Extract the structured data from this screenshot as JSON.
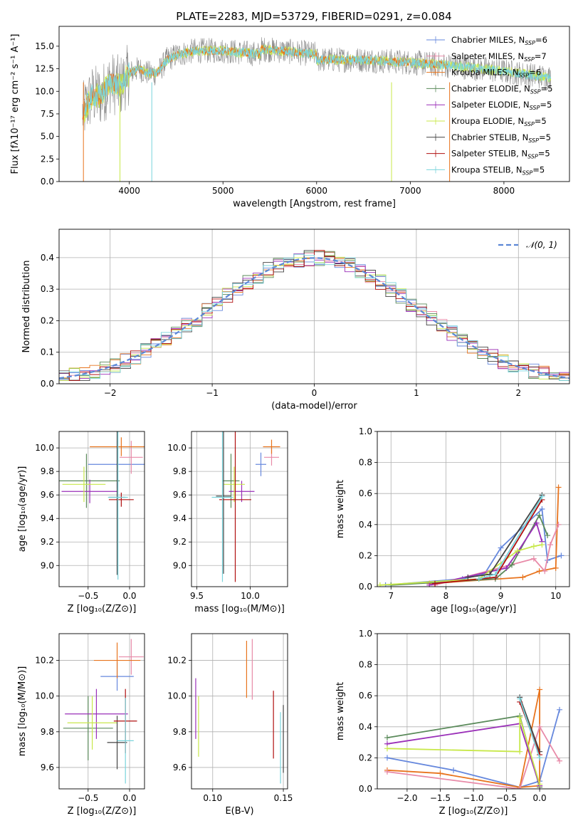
{
  "figure": {
    "title": "PLATE=2283, MJD=53729, FIBERID=0291, z=0.084"
  },
  "colors": {
    "blue": "#6688dd",
    "orange": "#e8741e",
    "pink": "#e88aa8",
    "green": "#5a8a5a",
    "purple": "#9a2fb8",
    "lime": "#c8e84a",
    "dark": "#444444",
    "red": "#b01010",
    "cyan": "#7ad4dc",
    "gray": "#888888"
  },
  "chart_data": [
    {
      "id": "spectrum",
      "type": "line",
      "title": "PLATE=2283, MJD=53729, FIBERID=0291, z=0.084",
      "xlabel": "wavelength [Angstrom, rest frame]",
      "ylabel": "Flux [fλ10⁻¹⁷ erg cm⁻² s⁻¹ A⁻¹]",
      "xlim": [
        3250,
        8700
      ],
      "ylim": [
        0,
        17.2
      ],
      "xticks": [
        4000,
        5000,
        6000,
        7000,
        8000
      ],
      "yticks": [
        0.0,
        2.5,
        5.0,
        7.5,
        10.0,
        12.5,
        15.0
      ],
      "data_profile": {
        "wavelength": [
          3500,
          3600,
          3700,
          3800,
          3900,
          4000,
          4100,
          4200,
          4300,
          4400,
          4500,
          4700,
          5000,
          5500,
          6000,
          6500,
          7000,
          7500,
          8000,
          8500
        ],
        "flux": [
          7.5,
          9.5,
          9.5,
          11.0,
          10.5,
          12.0,
          12.5,
          12.0,
          12.0,
          13.5,
          14.0,
          14.5,
          14.5,
          14.0,
          13.5,
          13.5,
          13.2,
          12.8,
          12.2,
          11.5
        ]
      },
      "legend": [
        {
          "label": "Chabrier MILES, N",
          "sub": "SSP",
          "suffix": "=6",
          "color": "blue"
        },
        {
          "label": "Salpeter MILES, N",
          "sub": "SSP",
          "suffix": "=7",
          "color": "pink"
        },
        {
          "label": "Kroupa MILES, N",
          "sub": "SSP",
          "suffix": "=6",
          "color": "orange"
        },
        {
          "label": "Chabrier ELODIE, N",
          "sub": "SSP",
          "suffix": "=5",
          "color": "green"
        },
        {
          "label": "Salpeter ELODIE, N",
          "sub": "SSP",
          "suffix": "=5",
          "color": "purple"
        },
        {
          "label": "Kroupa ELODIE, N",
          "sub": "SSP",
          "suffix": "=5",
          "color": "lime"
        },
        {
          "label": "Chabrier STELIB, N",
          "sub": "SSP",
          "suffix": "=5",
          "color": "dark"
        },
        {
          "label": "Salpeter STELIB, N",
          "sub": "SSP",
          "suffix": "=5",
          "color": "red"
        },
        {
          "label": "Kroupa STELIB, N",
          "sub": "SSP",
          "suffix": "=5",
          "color": "cyan"
        }
      ],
      "legend_position": "top-right"
    },
    {
      "id": "residuals",
      "type": "histogram",
      "xlabel": "(data-model)/error",
      "ylabel": "Normed distribution",
      "xlim": [
        -2.5,
        2.5
      ],
      "ylim": [
        0,
        0.49
      ],
      "xticks": [
        -2,
        -1,
        0,
        1,
        2
      ],
      "yticks": [
        0.0,
        0.1,
        0.2,
        0.3,
        0.4
      ],
      "bin_width": 0.1,
      "normal_label": "𝒩(0, 1)",
      "normal_color": "#5b87d6",
      "legend_position": "top-right",
      "grid": true
    },
    {
      "id": "age_vs_Z",
      "type": "errorbar",
      "xlabel": "Z [log₁₀(Z/Z⊙)]",
      "ylabel": "age  [log₁₀(age/yr)]",
      "xlim": [
        -0.85,
        0.18
      ],
      "ylim": [
        8.82,
        10.14
      ],
      "xticks": [
        -0.5,
        0.0
      ],
      "yticks": [
        9.0,
        9.2,
        9.4,
        9.6,
        9.8,
        10.0
      ],
      "points": [
        {
          "x": -0.15,
          "y": 9.86,
          "xerr": 0.35,
          "yerr": 0.2,
          "color": "blue"
        },
        {
          "x": 0.02,
          "y": 9.92,
          "xerr": 0.14,
          "yerr": 0.14,
          "color": "pink"
        },
        {
          "x": -0.1,
          "y": 10.01,
          "xerr": 0.38,
          "yerr": 0.08,
          "color": "orange"
        },
        {
          "x": -0.52,
          "y": 9.72,
          "xerr": 0.4,
          "yerr": 0.23,
          "color": "green"
        },
        {
          "x": -0.48,
          "y": 9.63,
          "xerr": 0.34,
          "yerr": 0.1,
          "color": "purple"
        },
        {
          "x": -0.55,
          "y": 9.69,
          "xerr": 0.26,
          "yerr": 0.15,
          "color": "lime"
        },
        {
          "x": -0.15,
          "y": 9.58,
          "xerr": 0.1,
          "yerr": 0.66,
          "color": "dark"
        },
        {
          "x": -0.1,
          "y": 9.56,
          "xerr": 0.15,
          "yerr": 0.06,
          "color": "red"
        },
        {
          "x": -0.14,
          "y": 9.58,
          "xerr": 0.12,
          "yerr": 0.7,
          "color": "cyan"
        }
      ],
      "grid": true
    },
    {
      "id": "age_vs_mass",
      "type": "errorbar",
      "xlabel": "mass [log₁₀(M/M⊙)]",
      "ylabel": "",
      "xlim": [
        9.45,
        10.35
      ],
      "ylim": [
        8.82,
        10.14
      ],
      "xticks": [
        9.5,
        10.0
      ],
      "yticks": [
        9.0,
        9.2,
        9.4,
        9.6,
        9.8,
        10.0
      ],
      "points": [
        {
          "x": 10.1,
          "y": 9.86,
          "xerr": 0.05,
          "yerr": 0.1,
          "color": "blue"
        },
        {
          "x": 10.2,
          "y": 9.92,
          "xerr": 0.07,
          "yerr": 0.07,
          "color": "pink"
        },
        {
          "x": 10.2,
          "y": 10.01,
          "xerr": 0.08,
          "yerr": 0.06,
          "color": "orange"
        },
        {
          "x": 9.82,
          "y": 9.72,
          "xerr": 0.08,
          "yerr": 0.23,
          "color": "green"
        },
        {
          "x": 9.92,
          "y": 9.63,
          "xerr": 0.12,
          "yerr": 0.09,
          "color": "purple"
        },
        {
          "x": 9.85,
          "y": 9.69,
          "xerr": 0.1,
          "yerr": 0.15,
          "color": "lime"
        },
        {
          "x": 9.75,
          "y": 9.59,
          "xerr": 0.07,
          "yerr": 0.66,
          "color": "dark"
        },
        {
          "x": 9.86,
          "y": 9.56,
          "xerr": 0.15,
          "yerr": 0.7,
          "color": "red"
        },
        {
          "x": 9.74,
          "y": 9.58,
          "xerr": 0.1,
          "yerr": 0.72,
          "color": "cyan"
        }
      ],
      "grid": true
    },
    {
      "id": "mass_weight_vs_age",
      "type": "line",
      "xlabel": "age  [log₁₀(age/yr)]",
      "ylabel": "mass weight",
      "xlim": [
        6.75,
        10.25
      ],
      "ylim": [
        0.0,
        1.0
      ],
      "xticks": [
        7,
        8,
        9,
        10
      ],
      "yticks": [
        0.0,
        0.2,
        0.4,
        0.6,
        0.8,
        1.0
      ],
      "series": [
        {
          "color": "blue",
          "points": [
            [
              6.9,
              0.01
            ],
            [
              8.3,
              0.05
            ],
            [
              8.7,
              0.08
            ],
            [
              9.0,
              0.25
            ],
            [
              9.75,
              0.5
            ],
            [
              9.85,
              0.17
            ],
            [
              10.1,
              0.2
            ]
          ]
        },
        {
          "color": "orange",
          "points": [
            [
              7.7,
              0.02
            ],
            [
              9.4,
              0.06
            ],
            [
              9.7,
              0.1
            ],
            [
              10.0,
              0.12
            ],
            [
              10.05,
              0.64
            ]
          ]
        },
        {
          "color": "pink",
          "points": [
            [
              7.8,
              0.01
            ],
            [
              9.6,
              0.18
            ],
            [
              9.8,
              0.1
            ],
            [
              9.9,
              0.27
            ],
            [
              10.05,
              0.4
            ]
          ]
        },
        {
          "color": "green",
          "points": [
            [
              7.0,
              0.01
            ],
            [
              8.9,
              0.05
            ],
            [
              9.2,
              0.14
            ],
            [
              9.7,
              0.46
            ],
            [
              9.85,
              0.33
            ]
          ]
        },
        {
          "color": "purple",
          "points": [
            [
              7.7,
              0.01
            ],
            [
              9.1,
              0.12
            ],
            [
              9.3,
              0.22
            ],
            [
              9.65,
              0.41
            ],
            [
              9.75,
              0.29
            ]
          ]
        },
        {
          "color": "lime",
          "points": [
            [
              6.8,
              0.01
            ],
            [
              8.6,
              0.05
            ],
            [
              9.3,
              0.23
            ],
            [
              9.6,
              0.26
            ],
            [
              9.75,
              0.27
            ]
          ]
        },
        {
          "color": "dark",
          "points": [
            [
              8.4,
              0.06
            ],
            [
              8.8,
              0.08
            ],
            [
              9.75,
              0.59
            ]
          ]
        },
        {
          "color": "red",
          "points": [
            [
              7.8,
              0.02
            ],
            [
              8.9,
              0.06
            ],
            [
              9.75,
              0.56
            ]
          ]
        },
        {
          "color": "cyan",
          "points": [
            [
              8.6,
              0.05
            ],
            [
              8.9,
              0.08
            ],
            [
              9.75,
              0.58
            ]
          ]
        }
      ],
      "grid": true
    },
    {
      "id": "mass_vs_Z",
      "type": "errorbar",
      "xlabel": "Z [log₁₀(Z/Z⊙)]",
      "ylabel": "mass [log₁₀(M/M⊙)]",
      "xlim": [
        -0.85,
        0.18
      ],
      "ylim": [
        9.48,
        10.35
      ],
      "xticks": [
        -0.5,
        0.0
      ],
      "yticks": [
        9.6,
        9.8,
        10.0,
        10.2
      ],
      "points": [
        {
          "x": -0.15,
          "y": 10.11,
          "xerr": 0.2,
          "yerr": 0.08,
          "color": "blue"
        },
        {
          "x": 0.02,
          "y": 10.22,
          "xerr": 0.15,
          "yerr": 0.1,
          "color": "pink"
        },
        {
          "x": -0.15,
          "y": 10.2,
          "xerr": 0.28,
          "yerr": 0.1,
          "color": "orange"
        },
        {
          "x": -0.5,
          "y": 9.82,
          "xerr": 0.3,
          "yerr": 0.18,
          "color": "green"
        },
        {
          "x": -0.4,
          "y": 9.9,
          "xerr": 0.38,
          "yerr": 0.14,
          "color": "purple"
        },
        {
          "x": -0.45,
          "y": 9.85,
          "xerr": 0.3,
          "yerr": 0.15,
          "color": "lime"
        },
        {
          "x": -0.15,
          "y": 9.74,
          "xerr": 0.12,
          "yerr": 0.15,
          "color": "dark"
        },
        {
          "x": -0.05,
          "y": 9.86,
          "xerr": 0.14,
          "yerr": 0.18,
          "color": "red"
        },
        {
          "x": -0.05,
          "y": 9.75,
          "xerr": 0.1,
          "yerr": 0.24,
          "color": "cyan"
        }
      ],
      "grid": true
    },
    {
      "id": "mass_vs_EBV",
      "type": "errorbar",
      "xlabel": "E(B-V)",
      "ylabel": "",
      "xlim": [
        0.085,
        0.153
      ],
      "ylim": [
        9.48,
        10.35
      ],
      "xticks": [
        0.1,
        0.15
      ],
      "yticks": [
        9.6,
        9.8,
        10.0,
        10.2
      ],
      "points": [
        {
          "x": 0.124,
          "y": 10.15,
          "xerr": 0.0,
          "yerr": 0.16,
          "color": "orange"
        },
        {
          "x": 0.128,
          "y": 10.15,
          "xerr": 0.0,
          "yerr": 0.17,
          "color": "pink"
        },
        {
          "x": 0.088,
          "y": 9.93,
          "xerr": 0.0,
          "yerr": 0.17,
          "color": "purple"
        },
        {
          "x": 0.09,
          "y": 9.83,
          "xerr": 0.0,
          "yerr": 0.17,
          "color": "lime"
        },
        {
          "x": 0.143,
          "y": 9.84,
          "xerr": 0.0,
          "yerr": 0.19,
          "color": "red"
        },
        {
          "x": 0.148,
          "y": 9.71,
          "xerr": 0.0,
          "yerr": 0.2,
          "color": "cyan"
        },
        {
          "x": 0.15,
          "y": 9.76,
          "xerr": 0.0,
          "yerr": 0.19,
          "color": "dark"
        }
      ],
      "grid": true
    },
    {
      "id": "mass_weight_vs_Z",
      "type": "line",
      "xlabel": "Z [log₁₀(Z/Z⊙)]",
      "ylabel": "mass weight",
      "xlim": [
        -2.45,
        0.45
      ],
      "ylim": [
        0.0,
        1.0
      ],
      "xticks": [
        -2.0,
        -1.5,
        -1.0,
        -0.5,
        0.0
      ],
      "yticks": [
        0.0,
        0.2,
        0.4,
        0.6,
        0.8,
        1.0
      ],
      "series": [
        {
          "color": "blue",
          "points": [
            [
              -2.3,
              0.2
            ],
            [
              -1.3,
              0.12
            ],
            [
              -0.3,
              0.01
            ],
            [
              0.0,
              0.05
            ],
            [
              0.3,
              0.51
            ]
          ]
        },
        {
          "color": "orange",
          "points": [
            [
              -2.3,
              0.12
            ],
            [
              -1.5,
              0.1
            ],
            [
              -0.3,
              0.01
            ],
            [
              0.0,
              0.64
            ],
            [
              0.0,
              0.02
            ],
            [
              -0.3,
              0.01
            ]
          ]
        },
        {
          "color": "pink",
          "points": [
            [
              -2.3,
              0.11
            ],
            [
              -0.3,
              0.0
            ],
            [
              0.0,
              0.4
            ],
            [
              0.3,
              0.18
            ]
          ]
        },
        {
          "color": "green",
          "points": [
            [
              -2.3,
              0.33
            ],
            [
              -0.3,
              0.47
            ],
            [
              0.0,
              0.01
            ]
          ]
        },
        {
          "color": "purple",
          "points": [
            [
              -2.3,
              0.29
            ],
            [
              -0.3,
              0.42
            ],
            [
              0.0,
              0.02
            ]
          ]
        },
        {
          "color": "lime",
          "points": [
            [
              -2.3,
              0.26
            ],
            [
              -0.3,
              0.24
            ],
            [
              -0.3,
              0.46
            ],
            [
              0.0,
              0.03
            ]
          ]
        },
        {
          "color": "dark",
          "points": [
            [
              -0.3,
              0.59
            ],
            [
              0.0,
              0.24
            ]
          ]
        },
        {
          "color": "red",
          "points": [
            [
              -0.3,
              0.56
            ],
            [
              0.0,
              0.22
            ]
          ]
        },
        {
          "color": "cyan",
          "points": [
            [
              -0.3,
              0.58
            ],
            [
              0.0,
              0.2
            ]
          ]
        }
      ],
      "grid": true
    }
  ]
}
